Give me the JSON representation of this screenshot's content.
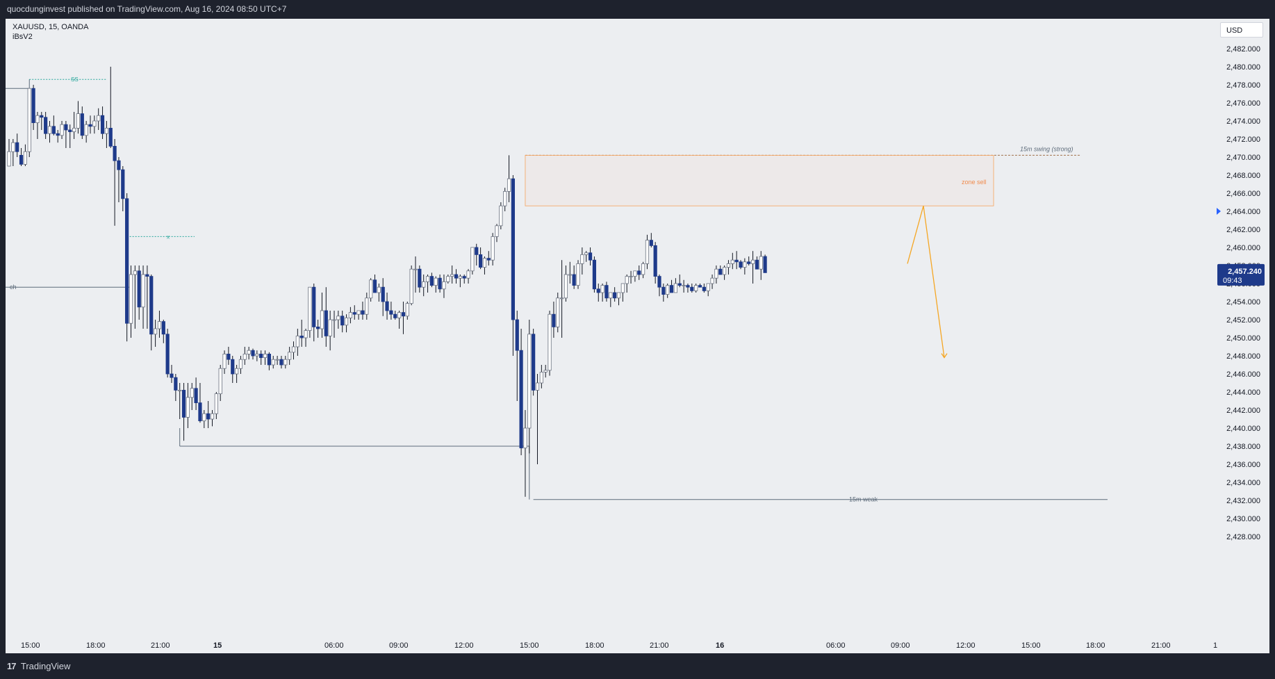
{
  "header": {
    "publish_line": "quocdunginvest published on TradingView.com, Aug 16, 2024 08:50 UTC+7"
  },
  "chart_header": {
    "symbol": "XAUUSD, 15, OANDA",
    "indicator": "iBsV2",
    "currency_button": "USD"
  },
  "price_axis": {
    "labels": [
      "2,482.000",
      "2,480.000",
      "2,478.000",
      "2,476.000",
      "2,474.000",
      "2,472.000",
      "2,470.000",
      "2,468.000",
      "2,466.000",
      "2,464.000",
      "2,462.000",
      "2,460.000",
      "2,458.000",
      "2,456.000",
      "2,454.000",
      "2,452.000",
      "2,450.000",
      "2,448.000",
      "2,446.000",
      "2,444.000",
      "2,442.000",
      "2,440.000",
      "2,438.000",
      "2,436.000",
      "2,434.000",
      "2,432.000",
      "2,430.000",
      "2,428.000"
    ],
    "current_price": "2,457.240",
    "countdown": "09:43"
  },
  "time_axis": {
    "labels": [
      "15:00",
      "18:00",
      "21:00",
      "15",
      "06:00",
      "09:00",
      "12:00",
      "15:00",
      "18:00",
      "21:00",
      "16",
      "06:00",
      "09:00",
      "12:00",
      "15:00",
      "18:00",
      "21:00",
      "1"
    ]
  },
  "annotations": {
    "ss": "SS",
    "x": "x",
    "ch": "ch",
    "swing": "15m swing (strong)",
    "zone": "zone sell",
    "weak": "15m weak"
  },
  "footer": {
    "logo": "17",
    "brand": "TradingView"
  },
  "colors": {
    "bear": "#1e3a8a",
    "bull": "#ffffff",
    "wick": "#131722",
    "zone": "#f7a35c",
    "arrow": "#f5a623",
    "guide": "#5d6b7a",
    "ss": "#26a69a"
  },
  "chart_data": {
    "type": "candlestick",
    "symbol": "XAUUSD",
    "timeframe": "15",
    "ylim": [
      2427,
      2483.5
    ],
    "xlabel": "",
    "ylabel": "",
    "levels": [
      {
        "name": "15m swing (strong)",
        "value": 2470.2
      },
      {
        "name": "15m weak",
        "value": 2432.1
      },
      {
        "name": "ch",
        "value": 2455.6
      },
      {
        "name": "zone sell",
        "from": 2464.6,
        "to": 2470.2
      }
    ],
    "ohlc": [
      [
        2469.0,
        2472.0,
        2469.0,
        2470.6
      ],
      [
        2470.6,
        2472.0,
        2469.0,
        2471.6
      ],
      [
        2471.6,
        2472.6,
        2470.0,
        2470.6
      ],
      [
        2470.2,
        2471.0,
        2469.0,
        2469.2
      ],
      [
        2469.2,
        2471.4,
        2469.0,
        2470.6
      ],
      [
        2470.6,
        2477.6,
        2470.0,
        2477.6
      ],
      [
        2477.6,
        2478.0,
        2473.0,
        2473.8
      ],
      [
        2473.8,
        2475.0,
        2472.0,
        2474.6
      ],
      [
        2474.6,
        2475.0,
        2473.0,
        2474.4
      ],
      [
        2474.4,
        2475.0,
        2472.0,
        2472.6
      ],
      [
        2472.6,
        2474.0,
        2471.6,
        2473.4
      ],
      [
        2473.4,
        2474.6,
        2472.4,
        2472.6
      ],
      [
        2472.6,
        2473.0,
        2471.6,
        2472.4
      ],
      [
        2472.4,
        2474.0,
        2472.0,
        2473.6
      ],
      [
        2473.6,
        2474.0,
        2471.0,
        2473.0
      ],
      [
        2473.0,
        2473.6,
        2471.0,
        2472.8
      ],
      [
        2472.8,
        2475.0,
        2472.0,
        2473.2
      ],
      [
        2473.2,
        2476.2,
        2472.6,
        2474.8
      ],
      [
        2474.8,
        2475.6,
        2472.0,
        2472.4
      ],
      [
        2472.4,
        2474.0,
        2471.6,
        2473.6
      ],
      [
        2473.6,
        2474.6,
        2472.6,
        2473.4
      ],
      [
        2473.4,
        2474.6,
        2472.6,
        2474.0
      ],
      [
        2474.0,
        2475.4,
        2473.0,
        2474.6
      ],
      [
        2474.6,
        2475.6,
        2472.0,
        2472.6
      ],
      [
        2472.6,
        2474.0,
        2471.0,
        2473.2
      ],
      [
        2473.2,
        2480.0,
        2471.0,
        2471.2
      ],
      [
        2471.2,
        2472.0,
        2462.4,
        2469.6
      ],
      [
        2469.6,
        2470.0,
        2465.0,
        2468.6
      ],
      [
        2468.6,
        2469.0,
        2464.0,
        2465.4
      ],
      [
        2465.4,
        2466.0,
        2449.6,
        2451.6
      ],
      [
        2451.6,
        2458.0,
        2450.0,
        2457.0
      ],
      [
        2457.0,
        2458.0,
        2451.0,
        2457.4
      ],
      [
        2457.4,
        2458.0,
        2452.0,
        2453.4
      ],
      [
        2453.4,
        2458.0,
        2451.0,
        2457.0
      ],
      [
        2457.0,
        2458.0,
        2451.0,
        2456.8
      ],
      [
        2456.8,
        2457.0,
        2448.6,
        2450.4
      ],
      [
        2450.4,
        2452.0,
        2449.0,
        2451.0
      ],
      [
        2451.0,
        2453.0,
        2450.0,
        2451.8
      ],
      [
        2451.8,
        2452.0,
        2449.4,
        2450.4
      ],
      [
        2450.4,
        2451.0,
        2445.6,
        2446.0
      ],
      [
        2446.0,
        2447.0,
        2445.0,
        2445.6
      ],
      [
        2445.6,
        2446.0,
        2443.0,
        2444.2
      ],
      [
        2444.2,
        2445.0,
        2441.0,
        2444.2
      ],
      [
        2444.2,
        2445.0,
        2438.6,
        2441.2
      ],
      [
        2441.2,
        2445.0,
        2440.0,
        2443.4
      ],
      [
        2443.4,
        2445.0,
        2442.0,
        2444.4
      ],
      [
        2444.4,
        2445.6,
        2442.0,
        2442.8
      ],
      [
        2442.8,
        2445.0,
        2440.6,
        2440.8
      ],
      [
        2440.8,
        2442.0,
        2440.0,
        2441.6
      ],
      [
        2441.6,
        2443.0,
        2440.0,
        2441.0
      ],
      [
        2441.0,
        2442.0,
        2440.2,
        2441.6
      ],
      [
        2441.6,
        2444.0,
        2441.0,
        2443.8
      ],
      [
        2443.8,
        2447.0,
        2443.0,
        2446.6
      ],
      [
        2446.6,
        2448.6,
        2446.0,
        2448.2
      ],
      [
        2448.2,
        2449.0,
        2447.0,
        2447.6
      ],
      [
        2447.6,
        2448.0,
        2445.0,
        2446.0
      ],
      [
        2446.0,
        2447.0,
        2445.0,
        2446.6
      ],
      [
        2446.6,
        2448.0,
        2446.0,
        2447.6
      ],
      [
        2447.6,
        2449.0,
        2447.0,
        2448.2
      ],
      [
        2448.2,
        2449.0,
        2447.6,
        2448.6
      ],
      [
        2448.6,
        2448.8,
        2447.6,
        2448.0
      ],
      [
        2448.0,
        2448.6,
        2447.4,
        2448.2
      ],
      [
        2448.2,
        2448.6,
        2447.0,
        2447.8
      ],
      [
        2447.8,
        2448.6,
        2447.0,
        2448.2
      ],
      [
        2448.2,
        2448.4,
        2446.4,
        2447.0
      ],
      [
        2447.0,
        2448.0,
        2446.6,
        2447.6
      ],
      [
        2447.6,
        2448.0,
        2447.0,
        2447.6
      ],
      [
        2447.6,
        2448.0,
        2446.6,
        2447.0
      ],
      [
        2447.0,
        2448.0,
        2446.6,
        2447.6
      ],
      [
        2447.6,
        2449.0,
        2447.0,
        2448.4
      ],
      [
        2448.4,
        2449.6,
        2447.6,
        2449.0
      ],
      [
        2449.0,
        2451.0,
        2448.0,
        2450.2
      ],
      [
        2450.2,
        2452.0,
        2449.0,
        2450.0
      ],
      [
        2450.0,
        2451.0,
        2449.0,
        2450.8
      ],
      [
        2450.8,
        2455.6,
        2450.0,
        2455.6
      ],
      [
        2455.6,
        2456.0,
        2449.6,
        2451.2
      ],
      [
        2451.2,
        2452.0,
        2450.0,
        2451.0
      ],
      [
        2451.0,
        2455.0,
        2450.0,
        2453.0
      ],
      [
        2453.0,
        2455.6,
        2449.0,
        2450.2
      ],
      [
        2450.2,
        2453.0,
        2448.6,
        2452.0
      ],
      [
        2452.0,
        2453.0,
        2450.0,
        2452.0
      ],
      [
        2452.0,
        2453.0,
        2451.0,
        2452.4
      ],
      [
        2452.4,
        2453.0,
        2450.6,
        2451.4
      ],
      [
        2451.4,
        2452.6,
        2450.6,
        2452.2
      ],
      [
        2452.2,
        2453.4,
        2451.6,
        2452.8
      ],
      [
        2452.8,
        2453.6,
        2452.0,
        2452.6
      ],
      [
        2452.6,
        2453.0,
        2452.0,
        2453.0
      ],
      [
        2453.0,
        2454.0,
        2452.0,
        2452.6
      ],
      [
        2452.6,
        2455.0,
        2452.0,
        2454.4
      ],
      [
        2454.4,
        2456.6,
        2454.0,
        2456.4
      ],
      [
        2456.4,
        2457.0,
        2455.0,
        2455.0
      ],
      [
        2455.0,
        2456.0,
        2454.0,
        2455.6
      ],
      [
        2455.6,
        2456.6,
        2452.4,
        2454.0
      ],
      [
        2454.0,
        2455.0,
        2452.0,
        2453.0
      ],
      [
        2453.0,
        2454.0,
        2452.0,
        2452.6
      ],
      [
        2452.6,
        2453.0,
        2452.0,
        2452.2
      ],
      [
        2452.2,
        2453.0,
        2451.0,
        2452.8
      ],
      [
        2452.8,
        2454.0,
        2450.4,
        2452.4
      ],
      [
        2452.4,
        2454.0,
        2452.0,
        2453.8
      ],
      [
        2453.8,
        2458.0,
        2453.6,
        2457.6
      ],
      [
        2457.6,
        2459.0,
        2455.0,
        2457.6
      ],
      [
        2457.6,
        2458.0,
        2455.0,
        2455.6
      ],
      [
        2455.6,
        2457.0,
        2454.6,
        2456.2
      ],
      [
        2456.2,
        2457.0,
        2455.0,
        2456.8
      ],
      [
        2456.8,
        2457.2,
        2455.6,
        2455.8
      ],
      [
        2455.8,
        2456.8,
        2455.0,
        2456.6
      ],
      [
        2456.6,
        2457.0,
        2455.0,
        2455.4
      ],
      [
        2455.4,
        2457.0,
        2454.4,
        2456.2
      ],
      [
        2456.2,
        2457.0,
        2456.0,
        2456.8
      ],
      [
        2456.8,
        2458.0,
        2456.0,
        2457.0
      ],
      [
        2457.0,
        2457.6,
        2456.0,
        2456.6
      ],
      [
        2456.6,
        2457.0,
        2455.6,
        2456.8
      ],
      [
        2456.8,
        2457.0,
        2456.0,
        2456.6
      ],
      [
        2456.6,
        2457.6,
        2456.0,
        2457.4
      ],
      [
        2457.4,
        2460.0,
        2457.0,
        2460.0
      ],
      [
        2460.0,
        2460.4,
        2458.0,
        2459.2
      ],
      [
        2459.2,
        2460.0,
        2457.6,
        2457.8
      ],
      [
        2457.8,
        2459.0,
        2457.0,
        2458.8
      ],
      [
        2458.8,
        2459.6,
        2458.0,
        2458.6
      ],
      [
        2458.6,
        2461.6,
        2458.0,
        2461.2
      ],
      [
        2461.2,
        2462.6,
        2460.6,
        2462.4
      ],
      [
        2462.4,
        2465.0,
        2462.0,
        2464.6
      ],
      [
        2464.6,
        2466.6,
        2464.0,
        2466.2
      ],
      [
        2466.2,
        2470.2,
        2465.0,
        2467.6
      ],
      [
        2467.6,
        2468.0,
        2448.0,
        2452.0
      ],
      [
        2452.0,
        2453.0,
        2443.0,
        2448.6
      ],
      [
        2448.6,
        2451.0,
        2437.0,
        2437.8
      ],
      [
        2437.8,
        2442.0,
        2432.4,
        2440.0
      ],
      [
        2440.0,
        2452.0,
        2437.2,
        2450.4
      ],
      [
        2450.4,
        2451.0,
        2443.6,
        2444.2
      ],
      [
        2444.2,
        2446.0,
        2436.0,
        2445.0
      ],
      [
        2445.0,
        2447.0,
        2444.4,
        2446.2
      ],
      [
        2446.2,
        2447.0,
        2445.6,
        2446.4
      ],
      [
        2446.4,
        2453.0,
        2445.8,
        2452.6
      ],
      [
        2452.6,
        2454.0,
        2450.0,
        2451.2
      ],
      [
        2451.2,
        2455.0,
        2450.6,
        2454.4
      ],
      [
        2454.4,
        2458.6,
        2450.0,
        2454.4
      ],
      [
        2454.4,
        2458.0,
        2454.0,
        2457.0
      ],
      [
        2457.0,
        2458.4,
        2456.0,
        2457.0
      ],
      [
        2457.0,
        2458.0,
        2455.4,
        2455.8
      ],
      [
        2455.8,
        2458.6,
        2455.4,
        2458.2
      ],
      [
        2458.2,
        2460.0,
        2457.0,
        2459.2
      ],
      [
        2459.2,
        2459.6,
        2458.4,
        2459.4
      ],
      [
        2459.4,
        2460.0,
        2458.0,
        2458.6
      ],
      [
        2458.6,
        2459.0,
        2455.0,
        2455.4
      ],
      [
        2455.4,
        2456.0,
        2454.0,
        2455.0
      ],
      [
        2455.0,
        2456.0,
        2454.0,
        2455.8
      ],
      [
        2455.8,
        2456.2,
        2454.0,
        2454.4
      ],
      [
        2454.4,
        2455.0,
        2453.4,
        2455.0
      ],
      [
        2455.0,
        2455.6,
        2454.0,
        2454.4
      ],
      [
        2454.4,
        2455.0,
        2453.6,
        2455.0
      ],
      [
        2455.0,
        2456.0,
        2454.0,
        2456.0
      ],
      [
        2456.0,
        2457.0,
        2455.0,
        2456.8
      ],
      [
        2456.8,
        2457.4,
        2456.0,
        2456.8
      ],
      [
        2456.8,
        2457.2,
        2456.2,
        2457.4
      ],
      [
        2457.4,
        2458.0,
        2456.4,
        2457.0
      ],
      [
        2457.0,
        2458.4,
        2456.6,
        2458.2
      ],
      [
        2458.2,
        2461.4,
        2457.6,
        2460.8
      ],
      [
        2460.8,
        2461.6,
        2460.0,
        2460.2
      ],
      [
        2460.2,
        2460.6,
        2456.0,
        2456.8
      ],
      [
        2456.8,
        2457.0,
        2454.6,
        2455.6
      ],
      [
        2455.6,
        2456.0,
        2454.0,
        2454.8
      ],
      [
        2454.8,
        2456.0,
        2454.4,
        2455.8
      ],
      [
        2455.8,
        2456.4,
        2455.0,
        2455.0
      ],
      [
        2455.0,
        2456.6,
        2455.0,
        2456.0
      ],
      [
        2456.0,
        2457.0,
        2455.6,
        2455.8
      ],
      [
        2455.8,
        2456.4,
        2455.0,
        2455.8
      ],
      [
        2455.8,
        2456.0,
        2455.0,
        2455.6
      ],
      [
        2455.6,
        2456.0,
        2455.0,
        2455.2
      ],
      [
        2455.2,
        2456.0,
        2455.0,
        2455.8
      ],
      [
        2455.8,
        2456.0,
        2455.6,
        2455.6
      ],
      [
        2455.6,
        2456.0,
        2455.0,
        2455.2
      ],
      [
        2455.2,
        2456.0,
        2454.6,
        2456.0
      ],
      [
        2456.0,
        2457.0,
        2455.4,
        2456.6
      ],
      [
        2456.6,
        2458.0,
        2456.0,
        2457.6
      ],
      [
        2457.6,
        2458.0,
        2457.0,
        2457.0
      ],
      [
        2457.0,
        2458.0,
        2456.4,
        2457.8
      ],
      [
        2457.8,
        2458.6,
        2457.0,
        2458.2
      ],
      [
        2458.2,
        2459.4,
        2457.6,
        2458.6
      ],
      [
        2458.6,
        2459.6,
        2457.6,
        2458.4
      ],
      [
        2458.4,
        2458.6,
        2457.6,
        2457.8
      ],
      [
        2457.8,
        2458.8,
        2457.0,
        2458.4
      ],
      [
        2458.4,
        2459.0,
        2458.0,
        2458.2
      ],
      [
        2458.2,
        2459.6,
        2456.0,
        2458.6
      ],
      [
        2458.6,
        2459.0,
        2457.6,
        2457.6
      ],
      [
        2457.6,
        2459.6,
        2456.4,
        2459.0
      ],
      [
        2459.0,
        2459.2,
        2457.2,
        2457.2
      ]
    ],
    "projection": [
      {
        "price": 2458.2
      },
      {
        "price": 2464.6
      },
      {
        "price": 2447.8
      }
    ]
  }
}
